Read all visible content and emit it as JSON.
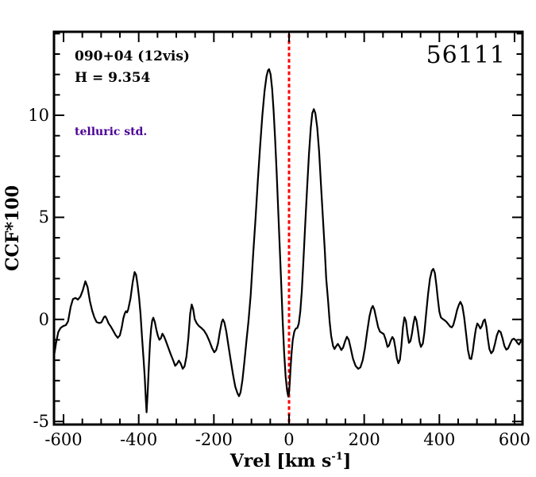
{
  "chart_data": {
    "type": "line",
    "title": "56111",
    "xlabel": "Vrel [km s^-1]",
    "xlabel_main": "Vrel [km s",
    "xlabel_sup": "-1",
    "xlabel_close": "]",
    "ylabel": "CCF*100",
    "xlim": [
      -625.4,
      621.2
    ],
    "ylim": [
      -5.15,
      14.09
    ],
    "x_major_ticks": [
      -600,
      -400,
      -200,
      0,
      200,
      400,
      600
    ],
    "x_tick_labels": [
      "-600",
      "-400",
      "-200",
      "0",
      "200",
      "400",
      "600"
    ],
    "x_minor_step": 50,
    "y_major_ticks": [
      -5,
      0,
      5,
      10
    ],
    "y_tick_labels": [
      "-5",
      "0",
      "5",
      "10"
    ],
    "y_minor_step": 1,
    "grid": false,
    "legend": "none",
    "annotations": {
      "field": "090+04 (12vis)",
      "h_mag": "H = 9.354",
      "telluric": "telluric std.",
      "telluric_color": "#4b0096"
    },
    "ref_line": {
      "x": 0,
      "color": "#ff0000",
      "style": "dotted"
    },
    "line_color": "#000000",
    "series": [
      {
        "name": "CCF",
        "color": "#000000",
        "points": [
          [
            -625,
            -1.75
          ],
          [
            -620,
            -1.15
          ],
          [
            -614,
            -0.62
          ],
          [
            -608,
            -0.42
          ],
          [
            -601,
            -0.33
          ],
          [
            -594,
            -0.28
          ],
          [
            -588,
            -0.1
          ],
          [
            -581,
            0.62
          ],
          [
            -575,
            1.0
          ],
          [
            -568,
            1.05
          ],
          [
            -562,
            0.97
          ],
          [
            -555,
            1.12
          ],
          [
            -549,
            1.42
          ],
          [
            -542,
            1.87
          ],
          [
            -536,
            1.58
          ],
          [
            -530,
            0.9
          ],
          [
            -524,
            0.44
          ],
          [
            -518,
            0.1
          ],
          [
            -512,
            -0.13
          ],
          [
            -505,
            -0.18
          ],
          [
            -499,
            -0.14
          ],
          [
            -492,
            0.12
          ],
          [
            -489,
            0.15
          ],
          [
            -485,
            0.03
          ],
          [
            -480,
            -0.2
          ],
          [
            -474,
            -0.36
          ],
          [
            -468,
            -0.55
          ],
          [
            -462,
            -0.75
          ],
          [
            -456,
            -0.9
          ],
          [
            -450,
            -0.78
          ],
          [
            -445,
            -0.38
          ],
          [
            -441,
            0.05
          ],
          [
            -437,
            0.3
          ],
          [
            -434,
            0.4
          ],
          [
            -431,
            0.34
          ],
          [
            -428,
            0.48
          ],
          [
            -422,
            1.02
          ],
          [
            -416,
            1.82
          ],
          [
            -411,
            2.32
          ],
          [
            -407,
            2.18
          ],
          [
            -403,
            1.68
          ],
          [
            -399,
            1.05
          ],
          [
            -395,
            0.25
          ],
          [
            -391,
            -0.9
          ],
          [
            -387,
            -1.95
          ],
          [
            -384,
            -2.85
          ],
          [
            -381,
            -3.95
          ],
          [
            -379,
            -4.55
          ],
          [
            -376,
            -3.55
          ],
          [
            -373,
            -2.25
          ],
          [
            -370,
            -1.15
          ],
          [
            -367,
            -0.45
          ],
          [
            -364,
            -0.05
          ],
          [
            -361,
            0.08
          ],
          [
            -357,
            -0.13
          ],
          [
            -353,
            -0.5
          ],
          [
            -349,
            -0.8
          ],
          [
            -345,
            -1.0
          ],
          [
            -341,
            -0.93
          ],
          [
            -337,
            -0.7
          ],
          [
            -333,
            -0.82
          ],
          [
            -328,
            -1.05
          ],
          [
            -322,
            -1.35
          ],
          [
            -315,
            -1.7
          ],
          [
            -308,
            -2.02
          ],
          [
            -303,
            -2.27
          ],
          [
            -298,
            -2.17
          ],
          [
            -293,
            -2.02
          ],
          [
            -288,
            -2.17
          ],
          [
            -283,
            -2.42
          ],
          [
            -278,
            -2.3
          ],
          [
            -273,
            -1.82
          ],
          [
            -268,
            -0.92
          ],
          [
            -263,
            0.28
          ],
          [
            -259,
            0.73
          ],
          [
            -255,
            0.5
          ],
          [
            -251,
            0.02
          ],
          [
            -246,
            -0.18
          ],
          [
            -240,
            -0.32
          ],
          [
            -233,
            -0.42
          ],
          [
            -226,
            -0.55
          ],
          [
            -219,
            -0.76
          ],
          [
            -212,
            -1.06
          ],
          [
            -205,
            -1.4
          ],
          [
            -199,
            -1.61
          ],
          [
            -194,
            -1.5
          ],
          [
            -189,
            -1.18
          ],
          [
            -184,
            -0.6
          ],
          [
            -179,
            -0.12
          ],
          [
            -176,
            0.0
          ],
          [
            -172,
            -0.15
          ],
          [
            -167,
            -0.6
          ],
          [
            -161,
            -1.32
          ],
          [
            -155,
            -2.02
          ],
          [
            -149,
            -2.72
          ],
          [
            -143,
            -3.3
          ],
          [
            -137,
            -3.63
          ],
          [
            -133,
            -3.76
          ],
          [
            -129,
            -3.58
          ],
          [
            -124,
            -2.98
          ],
          [
            -119,
            -2.1
          ],
          [
            -113,
            -1.0
          ],
          [
            -108,
            -0.1
          ],
          [
            -102,
            1.2
          ],
          [
            -95,
            3.3
          ],
          [
            -89,
            5.0
          ],
          [
            -83,
            6.8
          ],
          [
            -77,
            8.5
          ],
          [
            -71,
            10.0
          ],
          [
            -65,
            11.2
          ],
          [
            -60,
            11.9
          ],
          [
            -56,
            12.2
          ],
          [
            -53,
            12.26
          ],
          [
            -49,
            12.0
          ],
          [
            -45,
            11.3
          ],
          [
            -41,
            10.2
          ],
          [
            -37,
            8.8
          ],
          [
            -33,
            7.2
          ],
          [
            -29,
            5.4
          ],
          [
            -25,
            3.6
          ],
          [
            -21,
            1.8
          ],
          [
            -17,
            0.0
          ],
          [
            -13,
            -1.6
          ],
          [
            -9,
            -2.8
          ],
          [
            -5,
            -3.5
          ],
          [
            -2,
            -3.77
          ],
          [
            0,
            -3.6
          ],
          [
            2,
            -3.1
          ],
          [
            4,
            -2.4
          ],
          [
            7,
            -1.6
          ],
          [
            10,
            -1.0
          ],
          [
            14,
            -0.6
          ],
          [
            18,
            -0.45
          ],
          [
            22,
            -0.42
          ],
          [
            26,
            -0.2
          ],
          [
            30,
            0.4
          ],
          [
            34,
            1.4
          ],
          [
            38,
            2.8
          ],
          [
            43,
            4.6
          ],
          [
            48,
            6.4
          ],
          [
            53,
            8.1
          ],
          [
            58,
            9.4
          ],
          [
            62,
            10.1
          ],
          [
            66,
            10.3
          ],
          [
            70,
            10.1
          ],
          [
            75,
            9.4
          ],
          [
            80,
            8.2
          ],
          [
            85,
            6.6
          ],
          [
            90,
            5.0
          ],
          [
            95,
            3.4
          ],
          [
            99,
            2.0
          ],
          [
            104,
            0.9
          ],
          [
            108,
            -0.1
          ],
          [
            112,
            -0.8
          ],
          [
            117,
            -1.3
          ],
          [
            121,
            -1.45
          ],
          [
            126,
            -1.3
          ],
          [
            130,
            -1.2
          ],
          [
            135,
            -1.35
          ],
          [
            139,
            -1.5
          ],
          [
            144,
            -1.38
          ],
          [
            149,
            -1.08
          ],
          [
            154,
            -0.85
          ],
          [
            159,
            -1.0
          ],
          [
            164,
            -1.4
          ],
          [
            170,
            -1.92
          ],
          [
            177,
            -2.28
          ],
          [
            184,
            -2.42
          ],
          [
            190,
            -2.35
          ],
          [
            196,
            -2.0
          ],
          [
            202,
            -1.4
          ],
          [
            208,
            -0.6
          ],
          [
            214,
            0.15
          ],
          [
            219,
            0.52
          ],
          [
            223,
            0.66
          ],
          [
            227,
            0.48
          ],
          [
            232,
            0.05
          ],
          [
            237,
            -0.38
          ],
          [
            242,
            -0.6
          ],
          [
            247,
            -0.66
          ],
          [
            252,
            -0.72
          ],
          [
            257,
            -0.98
          ],
          [
            262,
            -1.35
          ],
          [
            266,
            -1.28
          ],
          [
            270,
            -1.05
          ],
          [
            275,
            -0.86
          ],
          [
            279,
            -0.98
          ],
          [
            283,
            -1.4
          ],
          [
            287,
            -1.9
          ],
          [
            291,
            -2.15
          ],
          [
            295,
            -1.98
          ],
          [
            299,
            -1.3
          ],
          [
            303,
            -0.4
          ],
          [
            307,
            0.1
          ],
          [
            311,
            -0.08
          ],
          [
            315,
            -0.7
          ],
          [
            319,
            -1.15
          ],
          [
            323,
            -1.06
          ],
          [
            327,
            -0.7
          ],
          [
            331,
            -0.2
          ],
          [
            335,
            0.14
          ],
          [
            339,
            -0.04
          ],
          [
            343,
            -0.52
          ],
          [
            347,
            -1.08
          ],
          [
            351,
            -1.35
          ],
          [
            356,
            -1.18
          ],
          [
            360,
            -0.65
          ],
          [
            365,
            0.3
          ],
          [
            370,
            1.25
          ],
          [
            375,
            2.0
          ],
          [
            380,
            2.38
          ],
          [
            384,
            2.48
          ],
          [
            388,
            2.28
          ],
          [
            392,
            1.7
          ],
          [
            396,
            1.0
          ],
          [
            400,
            0.38
          ],
          [
            404,
            0.1
          ],
          [
            409,
            0.02
          ],
          [
            414,
            -0.04
          ],
          [
            419,
            -0.12
          ],
          [
            424,
            -0.24
          ],
          [
            429,
            -0.35
          ],
          [
            433,
            -0.39
          ],
          [
            437,
            -0.28
          ],
          [
            442,
            0.06
          ],
          [
            447,
            0.46
          ],
          [
            452,
            0.72
          ],
          [
            456,
            0.86
          ],
          [
            461,
            0.66
          ],
          [
            466,
            0.12
          ],
          [
            471,
            -0.68
          ],
          [
            476,
            -1.5
          ],
          [
            481,
            -1.92
          ],
          [
            485,
            -1.94
          ],
          [
            489,
            -1.55
          ],
          [
            493,
            -0.98
          ],
          [
            497,
            -0.48
          ],
          [
            501,
            -0.2
          ],
          [
            505,
            -0.3
          ],
          [
            509,
            -0.45
          ],
          [
            513,
            -0.33
          ],
          [
            517,
            -0.08
          ],
          [
            521,
            0.0
          ],
          [
            525,
            -0.35
          ],
          [
            529,
            -0.95
          ],
          [
            533,
            -1.45
          ],
          [
            538,
            -1.66
          ],
          [
            543,
            -1.54
          ],
          [
            548,
            -1.18
          ],
          [
            553,
            -0.78
          ],
          [
            558,
            -0.55
          ],
          [
            563,
            -0.62
          ],
          [
            568,
            -0.92
          ],
          [
            573,
            -1.3
          ],
          [
            578,
            -1.48
          ],
          [
            583,
            -1.42
          ],
          [
            588,
            -1.2
          ],
          [
            593,
            -1.0
          ],
          [
            598,
            -0.94
          ],
          [
            603,
            -1.02
          ],
          [
            608,
            -1.16
          ],
          [
            612,
            -1.23
          ],
          [
            616,
            -1.1
          ],
          [
            621,
            -0.95
          ]
        ]
      }
    ]
  }
}
